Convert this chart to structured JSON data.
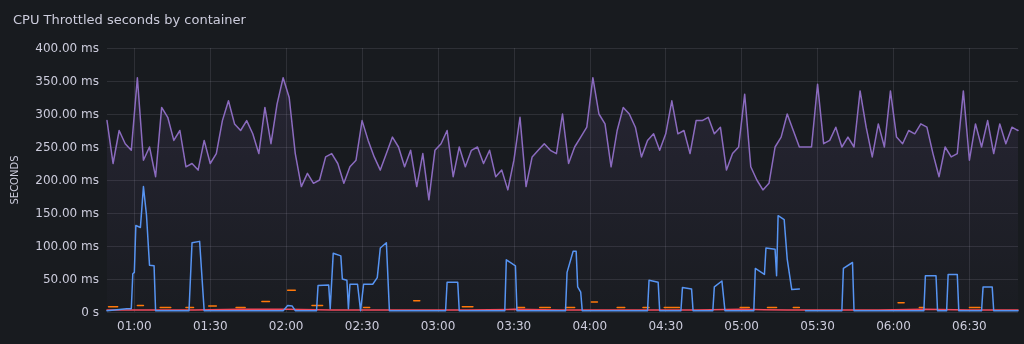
{
  "chart_data": {
    "type": "line",
    "title": "CPU Throttled seconds by container",
    "ylabel": "SECONDS",
    "xlim": [
      0.82,
      6.82
    ],
    "xticks": [
      {
        "value": 1,
        "label": "01:00"
      },
      {
        "value": 1.5,
        "label": "01:30"
      },
      {
        "value": 2,
        "label": "02:00"
      },
      {
        "value": 2.5,
        "label": "02:30"
      },
      {
        "value": 3,
        "label": "03:00"
      },
      {
        "value": 3.5,
        "label": "03:30"
      },
      {
        "value": 4,
        "label": "04:00"
      },
      {
        "value": 4.5,
        "label": "04:30"
      },
      {
        "value": 5,
        "label": "05:00"
      },
      {
        "value": 5.5,
        "label": "05:30"
      },
      {
        "value": 6,
        "label": "06:00"
      },
      {
        "value": 6.5,
        "label": "06:30"
      }
    ],
    "ylim": [
      0,
      400
    ],
    "yticks": [
      {
        "value": 0,
        "label": "0 s"
      },
      {
        "value": 50,
        "label": "50.00 ms"
      },
      {
        "value": 100,
        "label": "100.00 ms"
      },
      {
        "value": 150,
        "label": "150.00 ms"
      },
      {
        "value": 200,
        "label": "200.00 ms"
      },
      {
        "value": 250,
        "label": "250.00 ms"
      },
      {
        "value": 300,
        "label": "300.00 ms"
      },
      {
        "value": 350,
        "label": "350.00 ms"
      },
      {
        "value": 400,
        "label": "400.00 ms"
      }
    ],
    "grid": true,
    "marker": "none",
    "line_style": "solid",
    "x": [
      0.82,
      0.86,
      0.9,
      0.94,
      0.98,
      1.02,
      1.06,
      1.1,
      1.14,
      1.18,
      1.22,
      1.26,
      1.3,
      1.34,
      1.38,
      1.42,
      1.46,
      1.5,
      1.54,
      1.58,
      1.62,
      1.66,
      1.7,
      1.74,
      1.78,
      1.82,
      1.86,
      1.9,
      1.94,
      1.98,
      2.02,
      2.06,
      2.1,
      2.14,
      2.18,
      2.22,
      2.26,
      2.3,
      2.34,
      2.38,
      2.42,
      2.46,
      2.5,
      2.54,
      2.58,
      2.62,
      2.66,
      2.7,
      2.74,
      2.78,
      2.82,
      2.86,
      2.9,
      2.94,
      2.98,
      3.02,
      3.06,
      3.1,
      3.14,
      3.18,
      3.22,
      3.26,
      3.3,
      3.34,
      3.38,
      3.42,
      3.46,
      3.5,
      3.54,
      3.58,
      3.62,
      3.66,
      3.7,
      3.74,
      3.78,
      3.82,
      3.86,
      3.9,
      3.94,
      3.98,
      4.02,
      4.06,
      4.1,
      4.14,
      4.18,
      4.22,
      4.26,
      4.3,
      4.34,
      4.38,
      4.42,
      4.46,
      4.5,
      4.54,
      4.58,
      4.62,
      4.66,
      4.7,
      4.74,
      4.78,
      4.82,
      4.86,
      4.9,
      4.94,
      4.98,
      5.02,
      5.06,
      5.1,
      5.14,
      5.18,
      5.22,
      5.26,
      5.3,
      5.34,
      5.38,
      5.42,
      5.46,
      5.5,
      5.54,
      5.58,
      5.62,
      5.66,
      5.7,
      5.74,
      5.78,
      5.82,
      5.86,
      5.9,
      5.94,
      5.98,
      6.02,
      6.06,
      6.1,
      6.14,
      6.18,
      6.22,
      6.26,
      6.3,
      6.34,
      6.38,
      6.42,
      6.46,
      6.5,
      6.54,
      6.58,
      6.62,
      6.66,
      6.7,
      6.74,
      6.78,
      6.82
    ],
    "series": [
      {
        "type": "area",
        "color": "#8b6bbf",
        "values": [
          290,
          225,
          275,
          255,
          245,
          355,
          230,
          250,
          205,
          310,
          295,
          260,
          275,
          220,
          225,
          215,
          260,
          225,
          240,
          290,
          320,
          285,
          275,
          290,
          270,
          240,
          310,
          255,
          315,
          355,
          325,
          240,
          190,
          210,
          195,
          200,
          235,
          240,
          225,
          195,
          220,
          230,
          290,
          260,
          235,
          215,
          240,
          265,
          250,
          220,
          245,
          190,
          240,
          170,
          245,
          255,
          275,
          205,
          250,
          220,
          245,
          250,
          225,
          245,
          205,
          215,
          185,
          230,
          295,
          190,
          235,
          245,
          255,
          245,
          240,
          300,
          225,
          250,
          265,
          280,
          355,
          300,
          285,
          220,
          275,
          310,
          300,
          280,
          235,
          260,
          270,
          245,
          270,
          320,
          270,
          275,
          240,
          290,
          290,
          295,
          270,
          280,
          215,
          240,
          250,
          330,
          220,
          200,
          185,
          195,
          250,
          265,
          300,
          275,
          250,
          250,
          250,
          345,
          255,
          260,
          280,
          250,
          265,
          250,
          335,
          280,
          235,
          285,
          250,
          335,
          265,
          255,
          275,
          270,
          285,
          280,
          240,
          205,
          250,
          235,
          240,
          335,
          230,
          285,
          250,
          290,
          240,
          285,
          255,
          280,
          275
        ]
      },
      {
        "color": "#ff780a",
        "x": [
          0.83,
          0.89,
          0.95,
          1.02,
          1.06,
          1.1,
          1.17,
          1.24,
          1.3,
          1.34,
          1.39,
          1.45,
          1.49,
          1.54,
          1.6,
          1.67,
          1.73,
          1.78,
          1.84,
          1.89,
          1.95,
          2.01,
          2.06,
          2.1,
          2.17,
          2.24,
          2.4,
          2.51,
          2.55,
          2.7,
          2.84,
          2.88,
          3.0,
          3.16,
          3.23,
          3.4,
          3.52,
          3.57,
          3.62,
          3.67,
          3.74,
          3.79,
          3.84,
          3.9,
          3.95,
          4.01,
          4.05,
          4.1,
          4.18,
          4.23,
          4.3,
          4.35,
          4.39,
          4.44,
          4.49,
          4.59,
          4.8,
          4.99,
          5.05,
          5.1,
          5.17,
          5.23,
          5.3,
          5.34,
          5.38,
          5.7,
          6.03,
          6.07,
          6.12,
          6.17,
          6.2,
          6.35,
          6.5,
          6.57
        ],
        "values": [
          8,
          8,
          null,
          10,
          10,
          null,
          7,
          7,
          null,
          7,
          7,
          null,
          9,
          9,
          null,
          7,
          7,
          null,
          16,
          16,
          null,
          33,
          33,
          null,
          10,
          10,
          null,
          7,
          7,
          null,
          17,
          17,
          null,
          8,
          8,
          null,
          7,
          7,
          null,
          7,
          7,
          null,
          7,
          7,
          null,
          15,
          15,
          null,
          7,
          7,
          null,
          7,
          7,
          null,
          7,
          7,
          null,
          7,
          7,
          null,
          7,
          7,
          null,
          7,
          7,
          null,
          14,
          14,
          null,
          7,
          7,
          null,
          7,
          7
        ]
      },
      {
        "color": "#f2495c",
        "x": [
          0.82,
          1.1,
          1.4,
          1.7,
          2.0,
          2.3,
          2.6,
          2.9,
          3.2,
          3.5,
          3.8,
          4.1,
          4.4,
          4.7,
          5.0,
          5.3,
          5.6,
          5.9,
          6.2,
          6.5,
          6.82
        ],
        "values": [
          3,
          3,
          3,
          4,
          4,
          3,
          3,
          3,
          3,
          4,
          3,
          3,
          3,
          3,
          4,
          3,
          3,
          3,
          4,
          3,
          3
        ]
      },
      {
        "color": "#5794f2",
        "x": [
          0.82,
          0.95,
          0.98,
          0.99,
          1.0,
          1.01,
          1.04,
          1.06,
          1.08,
          1.1,
          1.13,
          1.14,
          1.36,
          1.38,
          1.43,
          1.46,
          1.98,
          2.01,
          2.04,
          2.06,
          2.2,
          2.21,
          2.28,
          2.29,
          2.31,
          2.36,
          2.37,
          2.4,
          2.41,
          2.42,
          2.47,
          2.49,
          2.51,
          2.57,
          2.6,
          2.62,
          2.66,
          2.68,
          3.05,
          3.06,
          3.13,
          3.14,
          3.44,
          3.45,
          3.51,
          3.52,
          3.84,
          3.85,
          3.89,
          3.91,
          3.92,
          3.94,
          3.95,
          4.38,
          4.39,
          4.45,
          4.46,
          4.6,
          4.61,
          4.67,
          4.68,
          4.81,
          4.82,
          4.87,
          4.89,
          5.08,
          5.09,
          5.15,
          5.16,
          5.22,
          5.23,
          5.24,
          5.28,
          5.3,
          5.33,
          5.38,
          5.39,
          5.42,
          5.66,
          5.67,
          5.73,
          5.74,
          6.2,
          6.21,
          6.28,
          6.29,
          6.35,
          6.36,
          6.42,
          6.43,
          6.58,
          6.59,
          6.65,
          6.66,
          6.82
        ],
        "values": [
          2,
          5,
          5,
          58,
          60,
          131,
          128,
          190,
          147,
          71,
          70,
          2,
          2,
          105,
          107,
          2,
          2,
          10,
          9,
          2,
          2,
          40,
          41,
          5,
          89,
          85,
          50,
          48,
          5,
          42,
          42,
          2,
          42,
          42,
          52,
          97,
          105,
          2,
          2,
          45,
          45,
          2,
          2,
          79,
          70,
          2,
          2,
          60,
          92,
          92,
          38,
          30,
          2,
          2,
          48,
          45,
          2,
          2,
          37,
          35,
          2,
          2,
          38,
          47,
          2,
          2,
          66,
          57,
          97,
          95,
          55,
          146,
          140,
          80,
          34,
          35,
          null,
          2,
          2,
          66,
          75,
          2,
          2,
          55,
          55,
          2,
          2,
          57,
          57,
          2,
          2,
          38,
          38,
          2,
          2
        ]
      }
    ]
  }
}
